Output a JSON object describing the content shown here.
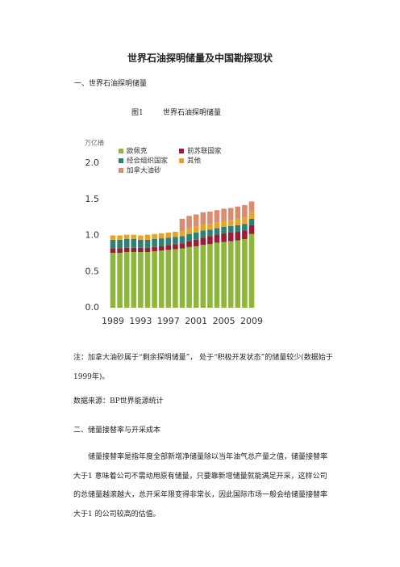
{
  "header": {
    "title": "世界石油探明储量及中国勘探现状"
  },
  "sections": [
    {
      "heading": "一、世界石油探明储量",
      "figure_label": "图1",
      "figure_title": "世界石油探明储量",
      "note": "注：加拿大油砂属于“剩余探明储量”， 处于“积极开发状态”的储量较少(数据始于1999年)。",
      "source": "数据来源：BP世界能源统计"
    },
    {
      "heading": "二、储量接替率与开采成本",
      "paragraph": "储量接替率是指年度全部新增净储量除以当年油气总产量之值，储量接替率大于1 意味着公司不需动用原有储量，只要靠新增储量就能满足开采，这样公司的总储量越滚越大，总开采年限变得非常长，因此国际市场一般会给储量接替率大于1 的公司较高的估值。"
    }
  ],
  "chart_data": {
    "type": "bar",
    "stacked": true,
    "y_label": "万亿桶",
    "categories": [
      "1989",
      null,
      null,
      null,
      "1993",
      null,
      null,
      null,
      "1997",
      null,
      null,
      null,
      "2001",
      null,
      null,
      null,
      "2005",
      null,
      null,
      null,
      "2009"
    ],
    "series": [
      {
        "name": "欧佩克",
        "color": "#8db63a",
        "values": [
          0.76,
          0.76,
          0.77,
          0.77,
          0.77,
          0.77,
          0.78,
          0.79,
          0.8,
          0.81,
          0.82,
          0.84,
          0.85,
          0.87,
          0.88,
          0.9,
          0.91,
          0.92,
          0.93,
          0.95,
          1.02
        ]
      },
      {
        "name": "前苏联国家",
        "color": "#9b1c34",
        "values": [
          0.06,
          0.06,
          0.06,
          0.06,
          0.06,
          0.06,
          0.06,
          0.06,
          0.06,
          0.07,
          0.07,
          0.08,
          0.09,
          0.1,
          0.11,
          0.11,
          0.12,
          0.12,
          0.12,
          0.12,
          0.12
        ]
      },
      {
        "name": "经合组织国家",
        "color": "#2f7f74",
        "values": [
          0.12,
          0.12,
          0.12,
          0.12,
          0.11,
          0.11,
          0.11,
          0.11,
          0.11,
          0.1,
          0.1,
          0.1,
          0.1,
          0.1,
          0.09,
          0.09,
          0.09,
          0.09,
          0.09,
          0.09,
          0.09
        ]
      },
      {
        "name": "其他",
        "color": "#e8a224",
        "values": [
          0.06,
          0.06,
          0.06,
          0.06,
          0.06,
          0.07,
          0.07,
          0.07,
          0.07,
          0.07,
          0.07,
          0.08,
          0.08,
          0.08,
          0.08,
          0.08,
          0.08,
          0.08,
          0.09,
          0.09,
          0.09
        ]
      },
      {
        "name": "加拿大油砂",
        "color": "#d98c70",
        "values": [
          null,
          null,
          null,
          null,
          null,
          null,
          null,
          null,
          null,
          null,
          0.17,
          0.17,
          0.17,
          0.17,
          0.17,
          0.17,
          0.17,
          0.17,
          0.17,
          0.17,
          0.15
        ]
      }
    ],
    "ylim": [
      0,
      2
    ],
    "yticks": [
      {
        "value": 0,
        "label": "0.0"
      },
      0.5,
      {
        "value": 1,
        "label": "1.0"
      },
      1.5,
      {
        "value": 2,
        "label": "2.0"
      }
    ],
    "grid": false
  }
}
